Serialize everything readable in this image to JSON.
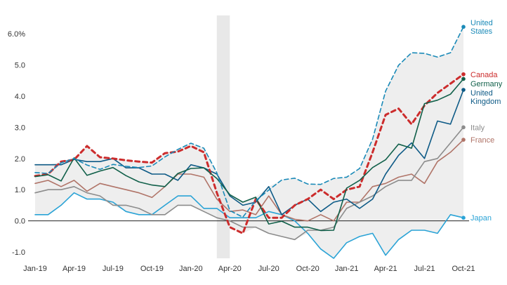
{
  "chart_data": {
    "type": "line",
    "x": [
      "Jan-19",
      "Feb-19",
      "Mar-19",
      "Apr-19",
      "May-19",
      "Jun-19",
      "Jul-19",
      "Aug-19",
      "Sep-19",
      "Oct-19",
      "Nov-19",
      "Dec-19",
      "Jan-20",
      "Feb-20",
      "Mar-20",
      "Apr-20",
      "May-20",
      "Jun-20",
      "Jul-20",
      "Aug-20",
      "Sep-20",
      "Oct-20",
      "Nov-20",
      "Dec-20",
      "Jan-21",
      "Feb-21",
      "Mar-21",
      "Apr-21",
      "May-21",
      "Jun-21",
      "Jul-21",
      "Aug-21",
      "Sep-21",
      "Oct-21"
    ],
    "x_tick_labels": [
      "Jan-19",
      "Apr-19",
      "Jul-19",
      "Oct-19",
      "Jan-20",
      "Apr-20",
      "Jul-20",
      "Oct-20",
      "Jan-21",
      "Apr-21",
      "Jul-21",
      "Oct-21"
    ],
    "x_tick_index": [
      0,
      3,
      6,
      9,
      12,
      15,
      18,
      21,
      24,
      27,
      30,
      33
    ],
    "y_ticks": [
      -1.0,
      0.0,
      1.0,
      2.0,
      3.0,
      4.0,
      5.0,
      6.0
    ],
    "y_tick_labels": [
      "-1.0",
      "0.0",
      "1.0",
      "2.0",
      "3.0",
      "4.0",
      "5.0",
      "6.0%"
    ],
    "ylim": [
      -1.2,
      6.9
    ],
    "shaded_period": [
      "Mar-20",
      "Apr-20"
    ],
    "range_band": true,
    "series": [
      {
        "name": "United States",
        "label_lines": [
          "United",
          "States"
        ],
        "color": "#1a8ab8",
        "dash": "dashed",
        "values": [
          1.55,
          1.52,
          1.86,
          2.0,
          1.79,
          1.65,
          1.81,
          1.75,
          1.71,
          1.76,
          2.05,
          2.29,
          2.49,
          2.33,
          1.54,
          0.33,
          0.12,
          0.65,
          0.99,
          1.31,
          1.37,
          1.18,
          1.17,
          1.36,
          1.4,
          1.68,
          2.62,
          4.16,
          4.99,
          5.39,
          5.37,
          5.25,
          5.39,
          6.22
        ]
      },
      {
        "name": "Germany",
        "label_lines": [
          "Germany"
        ],
        "color": "#11604a",
        "dash": "solid",
        "values": [
          1.42,
          1.48,
          1.28,
          2.02,
          1.46,
          1.6,
          1.71,
          1.45,
          1.25,
          1.15,
          1.1,
          1.52,
          1.68,
          1.7,
          1.36,
          0.84,
          0.6,
          0.76,
          -0.1,
          -0.01,
          -0.2,
          -0.2,
          -0.31,
          -0.3,
          1.05,
          1.3,
          1.71,
          1.96,
          2.46,
          2.33,
          3.76,
          3.87,
          4.06,
          4.55
        ]
      },
      {
        "name": "Canada",
        "label_lines": [
          "Canada"
        ],
        "color": "#cc2c2c",
        "dash": "dotted",
        "values": [
          1.44,
          1.5,
          1.9,
          1.96,
          2.4,
          2.04,
          2.0,
          1.94,
          1.9,
          1.87,
          2.17,
          2.22,
          2.4,
          2.2,
          0.9,
          -0.2,
          -0.4,
          0.7,
          0.1,
          0.1,
          0.5,
          0.7,
          1.0,
          0.7,
          1.0,
          1.1,
          2.2,
          3.4,
          3.6,
          3.1,
          3.7,
          4.1,
          4.4,
          4.7
        ]
      },
      {
        "name": "United Kingdom",
        "label_lines": [
          "United",
          "Kingdom"
        ],
        "color": "#0d5a86",
        "dash": "solid",
        "values": [
          1.8,
          1.8,
          1.8,
          1.97,
          1.9,
          1.9,
          2.0,
          1.7,
          1.7,
          1.5,
          1.5,
          1.3,
          1.8,
          1.7,
          1.5,
          0.8,
          0.5,
          0.6,
          1.1,
          0.2,
          0.5,
          0.7,
          0.3,
          0.6,
          0.7,
          0.4,
          0.7,
          1.5,
          2.1,
          2.5,
          2.0,
          3.2,
          3.1,
          4.2
        ]
      },
      {
        "name": "Italy",
        "label_lines": [
          "Italy"
        ],
        "color": "#8c8c8c",
        "dash": "solid",
        "values": [
          0.9,
          1.0,
          1.0,
          1.1,
          0.9,
          0.8,
          0.5,
          0.5,
          0.4,
          0.2,
          0.2,
          0.5,
          0.5,
          0.3,
          0.1,
          0.0,
          -0.2,
          -0.2,
          -0.4,
          -0.5,
          -0.6,
          -0.3,
          -0.3,
          -0.2,
          0.4,
          0.6,
          0.8,
          1.1,
          1.3,
          1.3,
          1.9,
          2.0,
          2.5,
          3.0
        ]
      },
      {
        "name": "France",
        "label_lines": [
          "France"
        ],
        "color": "#b07468",
        "dash": "solid",
        "values": [
          1.2,
          1.3,
          1.1,
          1.3,
          0.95,
          1.2,
          1.1,
          1.0,
          0.9,
          0.75,
          1.1,
          1.5,
          1.5,
          1.4,
          0.7,
          0.3,
          0.35,
          0.2,
          0.8,
          0.2,
          0.05,
          0.0,
          0.2,
          0.0,
          0.6,
          0.6,
          1.1,
          1.2,
          1.4,
          1.5,
          1.2,
          1.9,
          2.2,
          2.6
        ]
      },
      {
        "name": "Japan",
        "label_lines": [
          "Japan"
        ],
        "color": "#2aa3d6",
        "dash": "solid",
        "values": [
          0.2,
          0.2,
          0.5,
          0.9,
          0.7,
          0.7,
          0.6,
          0.3,
          0.2,
          0.2,
          0.5,
          0.8,
          0.8,
          0.4,
          0.4,
          0.1,
          0.1,
          0.1,
          0.3,
          0.2,
          0.0,
          -0.4,
          -0.9,
          -1.2,
          -0.7,
          -0.5,
          -0.4,
          -1.1,
          -0.6,
          -0.3,
          -0.3,
          -0.4,
          0.2,
          0.1
        ]
      }
    ]
  }
}
